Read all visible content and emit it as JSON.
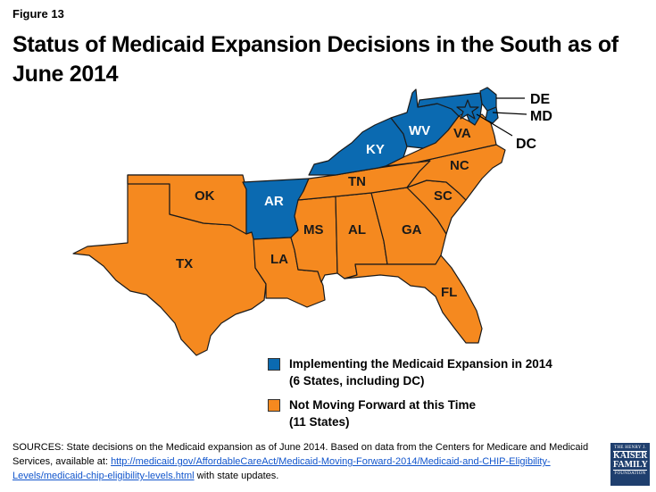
{
  "figure_label": "Figure 13",
  "title": "Status of Medicaid Expansion Decisions in the South as of June 2014",
  "colors": {
    "implementing": "#0b6ab1",
    "not_moving": "#f5891f"
  },
  "states": {
    "DE": {
      "label": "DE",
      "status": "implementing"
    },
    "MD": {
      "label": "MD",
      "status": "implementing"
    },
    "DC": {
      "label": "DC",
      "status": "implementing"
    },
    "WV": {
      "label": "WV",
      "status": "implementing"
    },
    "KY": {
      "label": "KY",
      "status": "implementing"
    },
    "AR": {
      "label": "AR",
      "status": "implementing"
    },
    "VA": {
      "label": "VA",
      "status": "not_moving"
    },
    "NC": {
      "label": "NC",
      "status": "not_moving"
    },
    "TN": {
      "label": "TN",
      "status": "not_moving"
    },
    "SC": {
      "label": "SC",
      "status": "not_moving"
    },
    "OK": {
      "label": "OK",
      "status": "not_moving"
    },
    "MS": {
      "label": "MS",
      "status": "not_moving"
    },
    "AL": {
      "label": "AL",
      "status": "not_moving"
    },
    "GA": {
      "label": "GA",
      "status": "not_moving"
    },
    "TX": {
      "label": "TX",
      "status": "not_moving"
    },
    "LA": {
      "label": "LA",
      "status": "not_moving"
    },
    "FL": {
      "label": "FL",
      "status": "not_moving"
    }
  },
  "legend": {
    "implementing": {
      "line1": "Implementing the Medicaid Expansion in 2014",
      "line2": "(6 States, including DC)"
    },
    "not_moving": {
      "line1": "Not Moving Forward at this Time",
      "line2": "(11 States)"
    }
  },
  "sources": {
    "prefix": "SOURCES: State decisions on the Medicaid expansion as of June 2014. Based on data from the Centers for Medicare and Medicaid Services, available at: ",
    "link": "http://medicaid.gov/AffordableCareAct/Medicaid-Moving-Forward-2014/Medicaid-and-CHIP-Eligibility-Levels/medicaid-chip-eligibility-levels.html",
    "suffix": " with state updates."
  },
  "logo": {
    "line1": "THE HENRY J.",
    "line2a": "KAISER",
    "line2b": "FAMILY",
    "line3": "FOUNDATION"
  }
}
